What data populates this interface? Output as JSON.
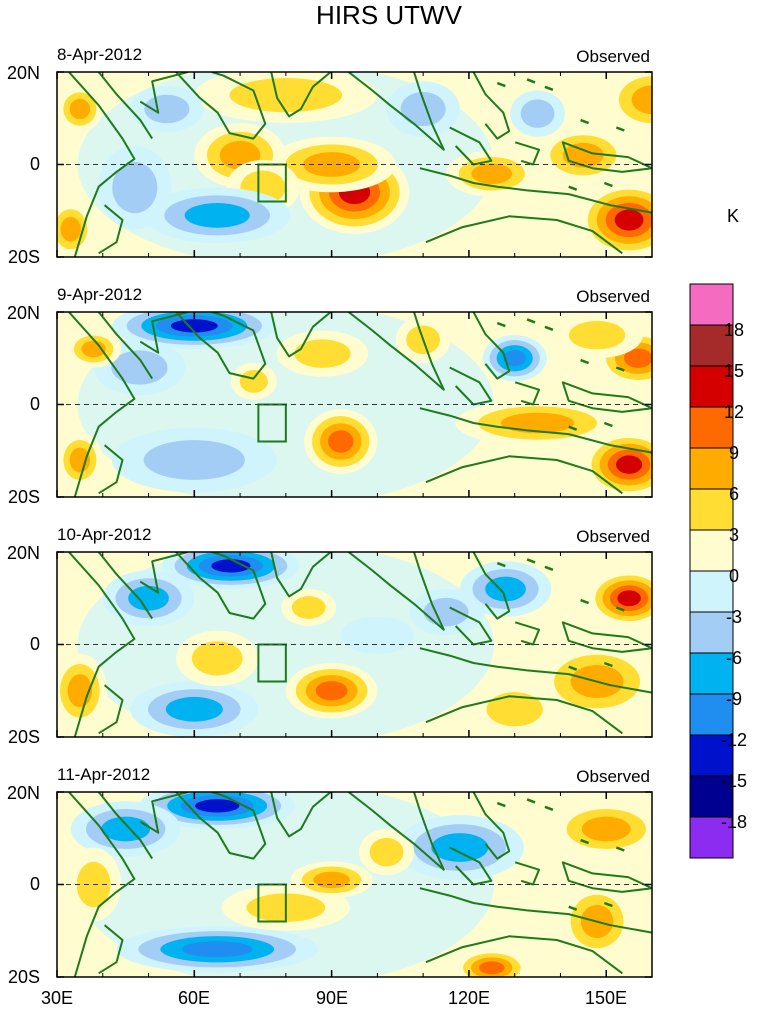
{
  "chart_data": {
    "type": "heatmap",
    "title": "HIRS UTWV",
    "colorbar": {
      "unit": "K",
      "levels": [
        "18",
        "15",
        "12",
        "9",
        "6",
        "3",
        "0",
        "-3",
        "-6",
        "-9",
        "-12",
        "-15",
        "-18"
      ],
      "colors": [
        "#f46bbf",
        "#a52a2a",
        "#d40000",
        "#ff6a00",
        "#ffab00",
        "#ffdd33",
        "#fffdcf",
        "#cff4fb",
        "#a4cdf6",
        "#00b2ef",
        "#1f8ef0",
        "#0011cc",
        "#000090",
        "#8b2cf0"
      ]
    },
    "xaxis": {
      "range": [
        30,
        160
      ],
      "ticks": [
        30,
        60,
        90,
        120,
        150
      ],
      "tick_labels": [
        "30E",
        "60E",
        "90E",
        "120E",
        "150E"
      ]
    },
    "yaxis": {
      "range": [
        -20,
        20
      ],
      "ticks": [
        20,
        0,
        -20
      ],
      "tick_labels": [
        "20N",
        "0",
        "20S"
      ]
    },
    "box_region": {
      "lon": [
        74,
        80
      ],
      "lat": [
        -8,
        0
      ]
    },
    "panels": [
      {
        "date": "8-Apr-2012",
        "label": "Observed",
        "features": [
          {
            "lon": 95,
            "lat": -6,
            "rx": 12,
            "ry": 9,
            "v": 14
          },
          {
            "lon": 90,
            "lat": 0,
            "rx": 14,
            "ry": 6,
            "v": 7
          },
          {
            "lon": 70,
            "lat": 2,
            "rx": 10,
            "ry": 7,
            "v": 7
          },
          {
            "lon": 80,
            "lat": 15,
            "rx": 20,
            "ry": 6,
            "v": 6
          },
          {
            "lon": 75,
            "lat": -5,
            "rx": 8,
            "ry": 6,
            "v": 6
          },
          {
            "lon": 155,
            "lat": -12,
            "rx": 11,
            "ry": 8,
            "v": 13
          },
          {
            "lon": 125,
            "lat": -2,
            "rx": 10,
            "ry": 5,
            "v": 9
          },
          {
            "lon": 145,
            "lat": 2,
            "rx": 10,
            "ry": 6,
            "v": 7
          },
          {
            "lon": 160,
            "lat": 14,
            "rx": 10,
            "ry": 7,
            "v": 9
          },
          {
            "lon": 35,
            "lat": 12,
            "rx": 5,
            "ry": 5,
            "v": 9
          },
          {
            "lon": 33,
            "lat": -14,
            "rx": 5,
            "ry": 6,
            "v": 8
          },
          {
            "lon": 65,
            "lat": -11,
            "rx": 16,
            "ry": 6,
            "v": -9
          },
          {
            "lon": 47,
            "lat": -5,
            "rx": 8,
            "ry": 9,
            "v": -6
          },
          {
            "lon": 54,
            "lat": 12,
            "rx": 8,
            "ry": 5,
            "v": -5
          },
          {
            "lon": 110,
            "lat": 12,
            "rx": 8,
            "ry": 6,
            "v": -4
          },
          {
            "lon": 135,
            "lat": 11,
            "rx": 6,
            "ry": 5,
            "v": -5
          }
        ]
      },
      {
        "date": "9-Apr-2012",
        "label": "Observed",
        "features": [
          {
            "lon": 60,
            "lat": 17,
            "rx": 18,
            "ry": 5,
            "v": -14
          },
          {
            "lon": 48,
            "lat": 8,
            "rx": 10,
            "ry": 6,
            "v": -6
          },
          {
            "lon": 60,
            "lat": -12,
            "rx": 18,
            "ry": 7,
            "v": -6
          },
          {
            "lon": 130,
            "lat": 10,
            "rx": 7,
            "ry": 5,
            "v": -10
          },
          {
            "lon": 92,
            "lat": -8,
            "rx": 8,
            "ry": 7,
            "v": 12
          },
          {
            "lon": 88,
            "lat": 11,
            "rx": 10,
            "ry": 5,
            "v": 6
          },
          {
            "lon": 110,
            "lat": 14,
            "rx": 6,
            "ry": 5,
            "v": 6
          },
          {
            "lon": 155,
            "lat": -13,
            "rx": 10,
            "ry": 7,
            "v": 13
          },
          {
            "lon": 135,
            "lat": -4,
            "rx": 18,
            "ry": 5,
            "v": 8
          },
          {
            "lon": 157,
            "lat": 10,
            "rx": 9,
            "ry": 6,
            "v": 12
          },
          {
            "lon": 148,
            "lat": 15,
            "rx": 10,
            "ry": 5,
            "v": 6
          },
          {
            "lon": 38,
            "lat": 12,
            "rx": 6,
            "ry": 4,
            "v": 7
          },
          {
            "lon": 35,
            "lat": -12,
            "rx": 5,
            "ry": 6,
            "v": 7
          },
          {
            "lon": 73,
            "lat": 5,
            "rx": 5,
            "ry": 4,
            "v": 4
          }
        ]
      },
      {
        "date": "10-Apr-2012",
        "label": "Observed",
        "features": [
          {
            "lon": 68,
            "lat": 17,
            "rx": 15,
            "ry": 5,
            "v": -14
          },
          {
            "lon": 50,
            "lat": 10,
            "rx": 10,
            "ry": 6,
            "v": -8
          },
          {
            "lon": 60,
            "lat": -14,
            "rx": 14,
            "ry": 6,
            "v": -9
          },
          {
            "lon": 128,
            "lat": 12,
            "rx": 10,
            "ry": 6,
            "v": -7
          },
          {
            "lon": 115,
            "lat": 7,
            "rx": 8,
            "ry": 5,
            "v": -5
          },
          {
            "lon": 90,
            "lat": -10,
            "rx": 10,
            "ry": 6,
            "v": 12
          },
          {
            "lon": 65,
            "lat": -3,
            "rx": 9,
            "ry": 6,
            "v": 6
          },
          {
            "lon": 155,
            "lat": 10,
            "rx": 9,
            "ry": 6,
            "v": 13
          },
          {
            "lon": 148,
            "lat": -8,
            "rx": 13,
            "ry": 8,
            "v": 8
          },
          {
            "lon": 130,
            "lat": -14,
            "rx": 10,
            "ry": 6,
            "v": 6
          },
          {
            "lon": 35,
            "lat": -10,
            "rx": 6,
            "ry": 8,
            "v": 9
          },
          {
            "lon": 85,
            "lat": 8,
            "rx": 6,
            "ry": 4,
            "v": 4
          },
          {
            "lon": 100,
            "lat": 2,
            "rx": 8,
            "ry": 4,
            "v": -3
          }
        ]
      },
      {
        "date": "11-Apr-2012",
        "label": "Observed",
        "features": [
          {
            "lon": 65,
            "lat": 17,
            "rx": 17,
            "ry": 5,
            "v": -13
          },
          {
            "lon": 45,
            "lat": 12,
            "rx": 12,
            "ry": 6,
            "v": -8
          },
          {
            "lon": 65,
            "lat": -14,
            "rx": 22,
            "ry": 5,
            "v": -10
          },
          {
            "lon": 118,
            "lat": 8,
            "rx": 14,
            "ry": 7,
            "v": -8
          },
          {
            "lon": 80,
            "lat": -5,
            "rx": 14,
            "ry": 5,
            "v": 6
          },
          {
            "lon": 90,
            "lat": 1,
            "rx": 9,
            "ry": 4,
            "v": 7
          },
          {
            "lon": 125,
            "lat": -18,
            "rx": 8,
            "ry": 4,
            "v": 12
          },
          {
            "lon": 148,
            "lat": -8,
            "rx": 8,
            "ry": 8,
            "v": 8
          },
          {
            "lon": 150,
            "lat": 12,
            "rx": 12,
            "ry": 6,
            "v": 9
          },
          {
            "lon": 38,
            "lat": 0,
            "rx": 6,
            "ry": 8,
            "v": 6
          },
          {
            "lon": 102,
            "lat": 7,
            "rx": 6,
            "ry": 5,
            "v": 5
          }
        ]
      }
    ]
  }
}
